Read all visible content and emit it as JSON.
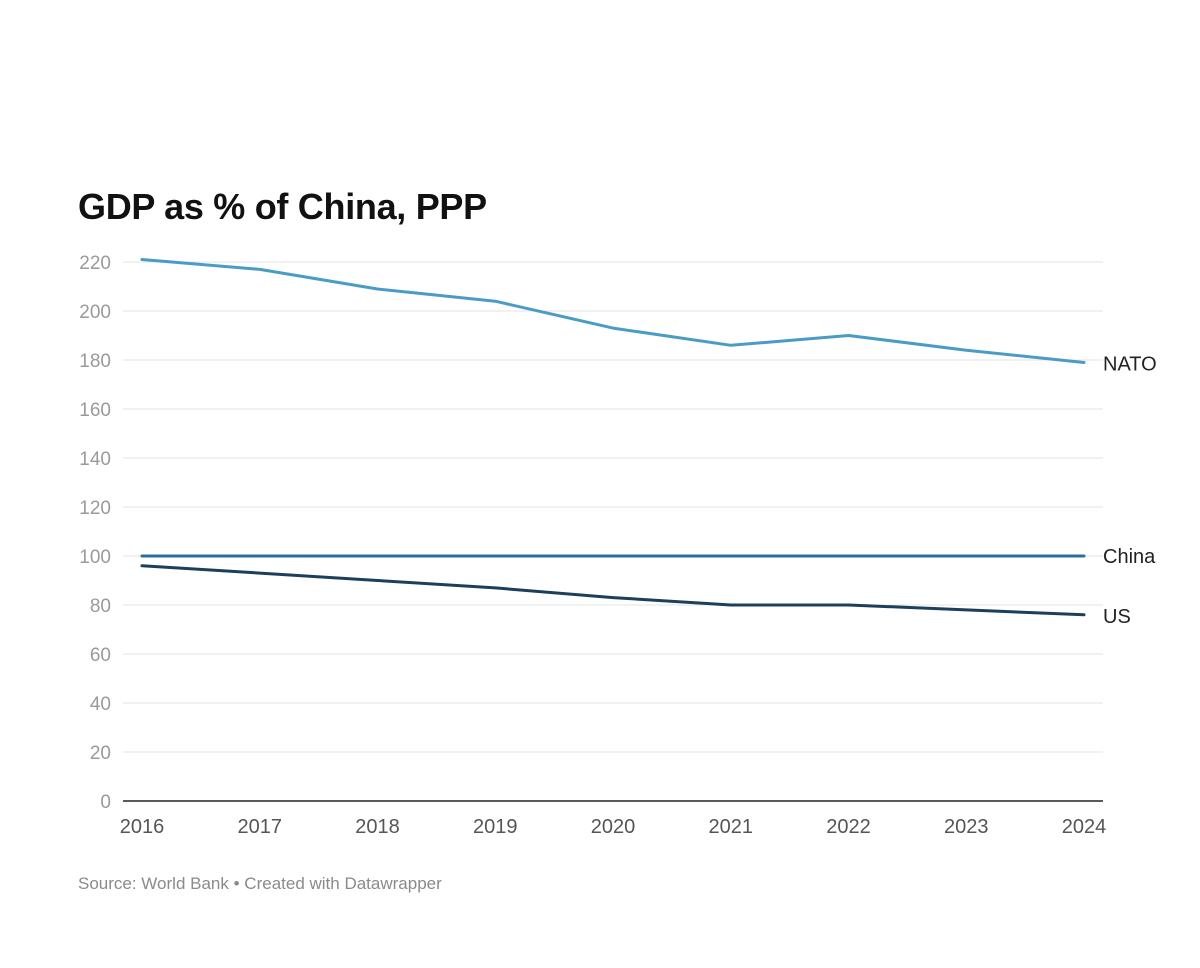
{
  "chart_data": {
    "type": "line",
    "title": "GDP as % of China, PPP",
    "xlabel": "",
    "ylabel": "",
    "x": [
      "2016",
      "2017",
      "2018",
      "2019",
      "2020",
      "2021",
      "2022",
      "2023",
      "2024"
    ],
    "ylim": [
      0,
      220
    ],
    "yticks": [
      0,
      20,
      40,
      60,
      80,
      100,
      120,
      140,
      160,
      180,
      200,
      220
    ],
    "grid": true,
    "legend": "direct labels at line ends (right)",
    "series": [
      {
        "name": "NATO",
        "values": [
          221,
          217,
          209,
          204,
          193,
          186,
          190,
          184,
          179
        ],
        "color": "#4a9cc6"
      },
      {
        "name": "China",
        "values": [
          100,
          100,
          100,
          100,
          100,
          100,
          100,
          100,
          100
        ],
        "color": "#2c6e9b"
      },
      {
        "name": "US",
        "values": [
          96,
          93,
          90,
          87,
          83,
          80,
          80,
          78,
          76
        ],
        "color": "#1c3f5c"
      }
    ]
  },
  "footer": {
    "source": "Source: World Bank",
    "separator": "•",
    "credit": "Created with Datawrapper"
  }
}
